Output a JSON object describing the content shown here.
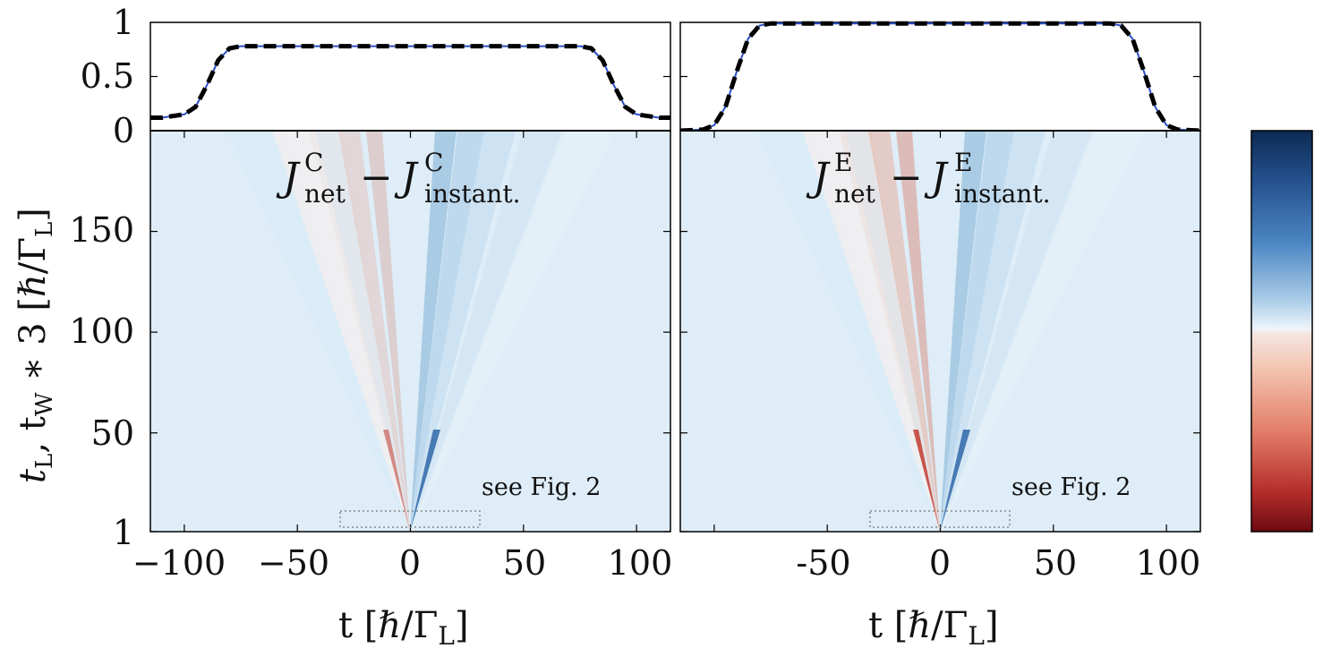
{
  "chart_data": [
    {
      "type": "line",
      "panel": "top-left",
      "ylim": [
        0,
        1
      ],
      "xlim": [
        -115,
        115
      ],
      "yticks": [
        "0",
        "0.5",
        "1"
      ],
      "series": [
        {
          "style": "solid-blue",
          "x": [
            -115,
            -110,
            -100,
            -95,
            -90,
            -85,
            -80,
            -75,
            -70,
            0,
            70,
            75,
            80,
            85,
            90,
            95,
            100,
            110,
            115
          ],
          "y": [
            0.12,
            0.12,
            0.15,
            0.22,
            0.42,
            0.65,
            0.76,
            0.78,
            0.78,
            0.78,
            0.78,
            0.78,
            0.76,
            0.65,
            0.42,
            0.22,
            0.15,
            0.12,
            0.12
          ]
        },
        {
          "style": "dashed-black",
          "x": [
            -115,
            -110,
            -100,
            -95,
            -90,
            -85,
            -80,
            -75,
            -70,
            0,
            70,
            75,
            80,
            85,
            90,
            95,
            100,
            110,
            115
          ],
          "y": [
            0.12,
            0.12,
            0.15,
            0.22,
            0.42,
            0.65,
            0.76,
            0.78,
            0.78,
            0.78,
            0.78,
            0.78,
            0.76,
            0.65,
            0.42,
            0.22,
            0.15,
            0.12,
            0.12
          ]
        }
      ]
    },
    {
      "type": "line",
      "panel": "top-right",
      "ylim": [
        0,
        1
      ],
      "xlim": [
        -115,
        115
      ],
      "series": [
        {
          "style": "solid-blue",
          "x": [
            -115,
            -105,
            -100,
            -95,
            -90,
            -85,
            -80,
            -75,
            0,
            75,
            80,
            85,
            90,
            95,
            100,
            105,
            115
          ],
          "y": [
            0.0,
            0.01,
            0.05,
            0.22,
            0.55,
            0.85,
            0.97,
            0.99,
            0.99,
            0.99,
            0.97,
            0.85,
            0.55,
            0.22,
            0.05,
            0.01,
            0.0
          ]
        },
        {
          "style": "dashed-black",
          "x": [
            -115,
            -105,
            -100,
            -95,
            -90,
            -85,
            -80,
            -75,
            0,
            75,
            80,
            85,
            90,
            95,
            100,
            105,
            115
          ],
          "y": [
            0.0,
            0.01,
            0.05,
            0.22,
            0.55,
            0.85,
            0.97,
            0.99,
            0.99,
            0.99,
            0.97,
            0.85,
            0.55,
            0.22,
            0.05,
            0.01,
            0.0
          ]
        }
      ]
    },
    {
      "type": "heatmap",
      "panel": "bottom-left",
      "title_main": "J",
      "title_sup": "C",
      "title_sub1": "net",
      "title_minus": "−",
      "title_sub2": "instant.",
      "xlim": [
        -115,
        115
      ],
      "ylim": [
        1,
        200
      ],
      "xticks": [
        "−100",
        "−50",
        "0",
        "50",
        "100"
      ],
      "yticks": [
        "1",
        "50",
        "100",
        "150"
      ],
      "xlabel": "t [ℏ/Γ",
      "xlabel_sub": "L",
      "annotation": "see Fig. 2",
      "inset_box": {
        "x": [
          -30,
          30
        ],
        "y": [
          1,
          10
        ]
      }
    },
    {
      "type": "heatmap",
      "panel": "bottom-right",
      "title_main": "J",
      "title_sup": "E",
      "title_sub1": "net",
      "title_minus": "−",
      "title_sub2": "instant.",
      "xlim": [
        -115,
        115
      ],
      "ylim": [
        1,
        200
      ],
      "xticks": [
        "-50",
        "0",
        "50",
        "100"
      ],
      "xlabel": "t [ℏ/Γ",
      "xlabel_sub": "L",
      "annotation": "see Fig. 2",
      "inset_box": {
        "x": [
          -30,
          30
        ],
        "y": [
          1,
          10
        ]
      }
    }
  ],
  "ylabel": {
    "a": "t",
    "a_sub": "L",
    "b": ", t",
    "b_sub": "W",
    "c": " ∗ 3 [ℏ/Γ",
    "c_sub": "L",
    "d": "]"
  },
  "xlabel_close": "]",
  "colors": {
    "background": "#deedf7",
    "blue_line": "#2b4fc8",
    "dashed": "#000000",
    "cmap_top": "#0c2a52",
    "cmap_mid": "#eef5fb",
    "cmap_bottom": "#6b0a12"
  }
}
